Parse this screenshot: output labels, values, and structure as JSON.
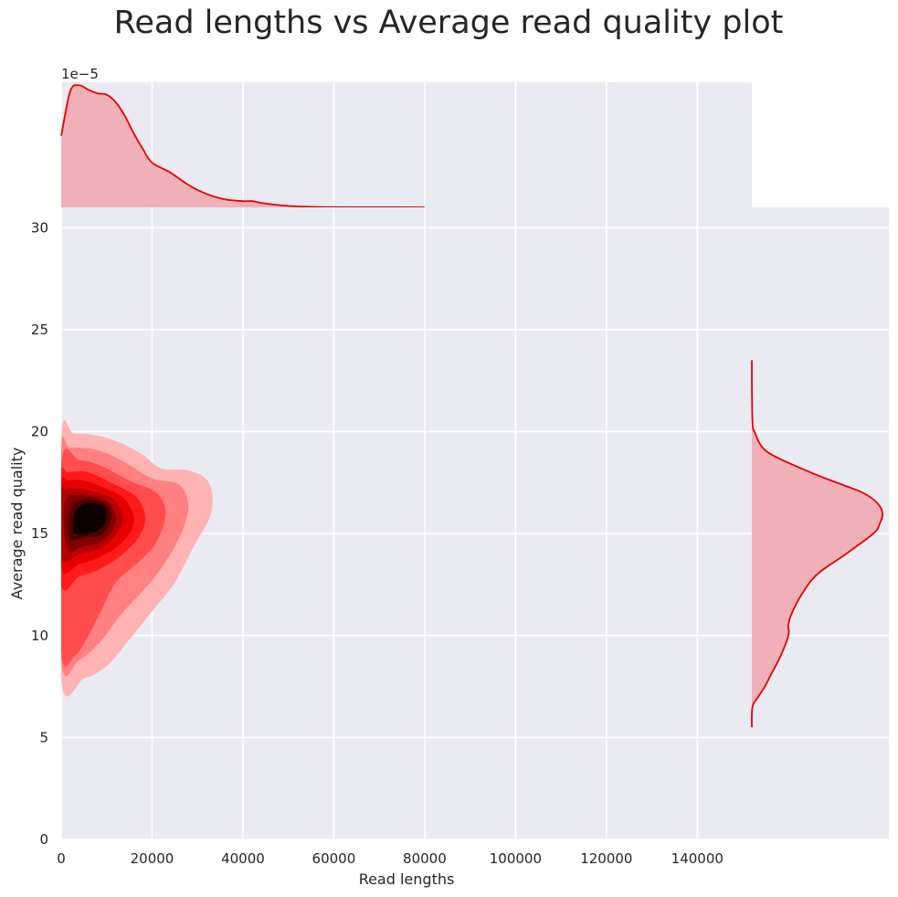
{
  "chart_data": {
    "type": "kde-jointplot",
    "title": "Read lengths vs Average read quality plot",
    "xlabel": "Read lengths",
    "ylabel": "Average read quality",
    "xlim": [
      0,
      152000
    ],
    "ylim": [
      0,
      31
    ],
    "xticks": [
      "0",
      "20000",
      "40000",
      "60000",
      "80000",
      "100000",
      "120000",
      "140000"
    ],
    "xtick_values": [
      0,
      20000,
      40000,
      60000,
      80000,
      100000,
      120000,
      140000
    ],
    "yticks": [
      "0",
      "5",
      "10",
      "15",
      "20",
      "25",
      "30"
    ],
    "ytick_values": [
      0,
      5,
      10,
      15,
      20,
      25,
      30
    ],
    "top_marginal": {
      "scale_label": "1e−5",
      "x": [
        0,
        2000,
        4000,
        6000,
        8000,
        10000,
        12000,
        14000,
        16000,
        18000,
        20000,
        24000,
        28000,
        32000,
        36000,
        40000,
        42000,
        44000,
        48000,
        52000,
        56000,
        60000,
        70000,
        80000
      ],
      "density": [
        1.6,
        2.6,
        2.73,
        2.63,
        2.55,
        2.52,
        2.35,
        2.05,
        1.65,
        1.3,
        1.0,
        0.78,
        0.5,
        0.3,
        0.18,
        0.14,
        0.14,
        0.1,
        0.05,
        0.02,
        0.01,
        0.004,
        0.002,
        0
      ]
    },
    "right_marginal": {
      "y": [
        5.5,
        6.5,
        7,
        7.5,
        8,
        9,
        10,
        10.5,
        11,
        12,
        13,
        14,
        15,
        15.5,
        16,
        16.5,
        17,
        17.5,
        18,
        19,
        20,
        20.5,
        22,
        23.5
      ],
      "density": [
        0,
        0.005,
        0.05,
        0.1,
        0.14,
        0.22,
        0.28,
        0.28,
        0.3,
        0.38,
        0.5,
        0.72,
        0.93,
        0.98,
        1.0,
        0.96,
        0.85,
        0.65,
        0.45,
        0.12,
        0.02,
        0.005,
        0.001,
        0
      ]
    },
    "joint_kde": {
      "colors": [
        "#ffb3b3",
        "#ff8080",
        "#ff4d4d",
        "#ff1a1a",
        "#e60000",
        "#b30000",
        "#800000",
        "#4d0000",
        "#0d0000"
      ],
      "levels": [
        [
          [
            0,
            7.9
          ],
          [
            5000,
            7.9
          ],
          [
            10000,
            8.5
          ],
          [
            15000,
            9.8
          ],
          [
            20000,
            11.2
          ],
          [
            25000,
            12.6
          ],
          [
            29000,
            14.3
          ],
          [
            33000,
            16.0
          ],
          [
            32500,
            17.5
          ],
          [
            28000,
            18.1
          ],
          [
            22000,
            18.2
          ],
          [
            17000,
            19.0
          ],
          [
            10000,
            19.7
          ],
          [
            3000,
            19.9
          ],
          [
            0,
            19.6
          ]
        ],
        [
          [
            0,
            8.8
          ],
          [
            4000,
            8.8
          ],
          [
            9000,
            9.8
          ],
          [
            13000,
            11.0
          ],
          [
            18000,
            12.2
          ],
          [
            22000,
            13.3
          ],
          [
            26000,
            14.8
          ],
          [
            28000,
            16.3
          ],
          [
            26000,
            17.4
          ],
          [
            20000,
            17.7
          ],
          [
            14000,
            18.5
          ],
          [
            8000,
            19.1
          ],
          [
            2000,
            19.2
          ],
          [
            0,
            18.9
          ]
        ],
        [
          [
            0,
            9.3
          ],
          [
            3000,
            9.0
          ],
          [
            6000,
            10.0
          ],
          [
            9000,
            11.3
          ],
          [
            12000,
            12.6
          ],
          [
            17000,
            13.6
          ],
          [
            21000,
            14.6
          ],
          [
            23000,
            16.0
          ],
          [
            21000,
            17.0
          ],
          [
            15000,
            17.6
          ],
          [
            9000,
            18.3
          ],
          [
            4000,
            18.6
          ],
          [
            0,
            18.4
          ]
        ],
        [
          [
            0,
            12.5
          ],
          [
            4000,
            12.9
          ],
          [
            8000,
            13.2
          ],
          [
            13000,
            13.9
          ],
          [
            17000,
            14.8
          ],
          [
            18500,
            15.8
          ],
          [
            16500,
            16.8
          ],
          [
            11000,
            17.5
          ],
          [
            6000,
            18.0
          ],
          [
            1500,
            18.0
          ],
          [
            0,
            17.8
          ]
        ],
        [
          [
            0,
            13.3
          ],
          [
            4000,
            13.5
          ],
          [
            8000,
            13.8
          ],
          [
            12000,
            14.3
          ],
          [
            15000,
            15.0
          ],
          [
            16000,
            15.8
          ],
          [
            14000,
            16.7
          ],
          [
            10000,
            17.2
          ],
          [
            5000,
            17.6
          ],
          [
            1500,
            17.6
          ],
          [
            0,
            17.4
          ]
        ],
        [
          [
            0,
            13.8
          ],
          [
            4000,
            14.0
          ],
          [
            8000,
            14.2
          ],
          [
            11000,
            14.7
          ],
          [
            13000,
            15.3
          ],
          [
            13500,
            15.9
          ],
          [
            11500,
            16.7
          ],
          [
            8000,
            17.0
          ],
          [
            4000,
            17.2
          ],
          [
            1000,
            17.2
          ],
          [
            0,
            17.0
          ]
        ],
        [
          [
            1500,
            14.2
          ],
          [
            5000,
            14.4
          ],
          [
            8500,
            14.6
          ],
          [
            11000,
            15.1
          ],
          [
            12000,
            15.8
          ],
          [
            10500,
            16.5
          ],
          [
            7500,
            16.8
          ],
          [
            4000,
            16.9
          ],
          [
            1500,
            16.8
          ],
          [
            500,
            16.0
          ]
        ],
        [
          [
            2000,
            14.7
          ],
          [
            5000,
            14.8
          ],
          [
            8500,
            14.9
          ],
          [
            10500,
            15.4
          ],
          [
            11000,
            16.0
          ],
          [
            9500,
            16.5
          ],
          [
            6500,
            16.7
          ],
          [
            3500,
            16.6
          ],
          [
            2000,
            16.1
          ],
          [
            1500,
            15.3
          ]
        ],
        [
          [
            3000,
            15.0
          ],
          [
            6000,
            15.0
          ],
          [
            9000,
            15.3
          ],
          [
            10000,
            15.8
          ],
          [
            9500,
            16.3
          ],
          [
            7000,
            16.5
          ],
          [
            4500,
            16.4
          ],
          [
            3000,
            16.0
          ],
          [
            2800,
            15.5
          ]
        ]
      ]
    },
    "line_color": "#e60000",
    "fill_color": "#f0b0b8",
    "grid": true
  }
}
